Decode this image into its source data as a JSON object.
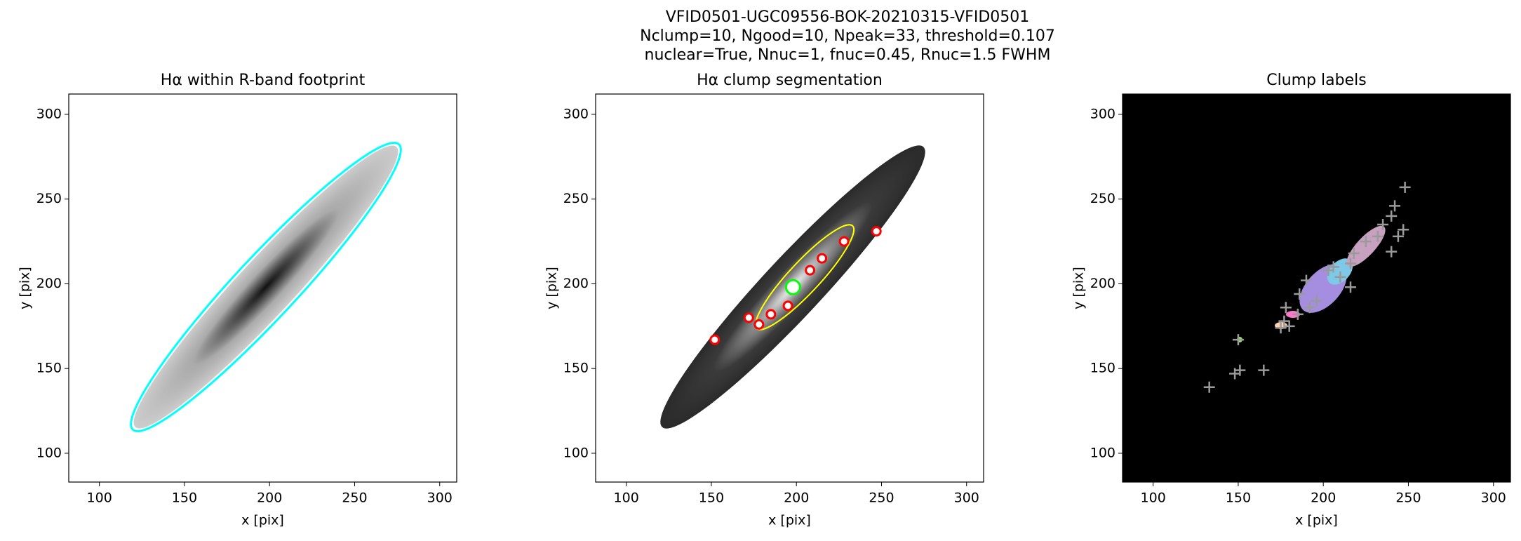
{
  "figure_title": [
    "VFID0501-UGC09556-BOK-20210315-VFID0501",
    "Nclump=10, Ngood=10, Npeak=33, threshold=0.107",
    "nuclear=True, Nnuc=1, fnuc=0.45, Rnuc=1.5 FWHM"
  ],
  "chart_data": [
    {
      "type": "image",
      "title": "Hα within R-band footprint",
      "xlabel": "x [pix]",
      "ylabel": "y [pix]",
      "xlim": [
        82,
        310
      ],
      "ylim": [
        83,
        312
      ],
      "xticks": [
        100,
        150,
        200,
        250,
        300
      ],
      "yticks": [
        100,
        150,
        200,
        250,
        300
      ],
      "series": []
    },
    {
      "type": "scatter",
      "title": "Hα clump segmentation",
      "xlabel": "x [pix]",
      "ylabel": "y [pix]",
      "xlim": [
        82,
        310
      ],
      "ylim": [
        83,
        312
      ],
      "xticks": [
        100,
        150,
        200,
        250,
        300
      ],
      "yticks": [
        100,
        150,
        200,
        250,
        300
      ],
      "series": [
        {
          "color": "#ff0000",
          "x": [
            195,
            208,
            215,
            228,
            247,
            172,
            178,
            185,
            152
          ],
          "values": [
            187,
            208,
            215,
            225,
            231,
            180,
            176,
            182,
            167
          ]
        },
        {
          "color": "#00ff00",
          "x": [
            198
          ],
          "values": [
            198
          ]
        }
      ]
    },
    {
      "type": "scatter",
      "title": "Clump labels",
      "xlabel": "x [pix]",
      "ylabel": "y [pix]",
      "xlim": [
        82,
        310
      ],
      "ylim": [
        83,
        312
      ],
      "xticks": [
        100,
        150,
        200,
        250,
        300
      ],
      "yticks": [
        100,
        150,
        200,
        250,
        300
      ],
      "background": "#000000",
      "series": [
        {
          "color": "#9a9a9a",
          "x": [
            133,
            148,
            151,
            165,
            175,
            177,
            178,
            186,
            190,
            192,
            196,
            203,
            206,
            210,
            216,
            216,
            218,
            225,
            232,
            235,
            240,
            242,
            248,
            240,
            244,
            247,
            185,
            150,
            180
          ],
          "values": [
            139,
            147,
            149,
            149,
            174,
            178,
            186,
            194,
            202,
            186,
            190,
            208,
            210,
            204,
            198,
            212,
            218,
            225,
            228,
            235,
            240,
            246,
            257,
            219,
            228,
            232,
            182,
            167,
            175
          ]
        }
      ]
    }
  ]
}
